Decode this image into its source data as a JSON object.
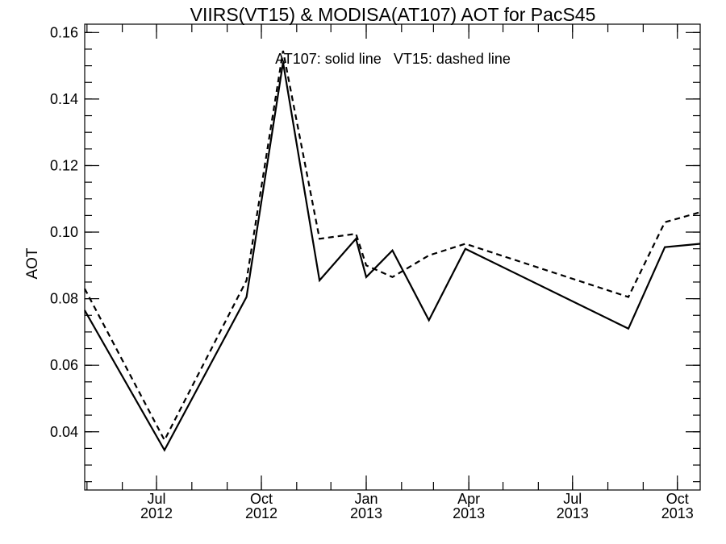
{
  "chart_data": {
    "type": "line",
    "title": "VIIRS(VT15) & MODISA(AT107)  AOT for PacS45",
    "ylabel": "AOT",
    "xlabel": "",
    "annotation": "AT107: solid line   VT15: dashed line",
    "xlim": [
      "2012-04-29",
      "2013-10-21"
    ],
    "ylim": [
      0.0225,
      0.1625
    ],
    "grid": false,
    "legend": "none",
    "y_ticks": [
      {
        "value": 0.04,
        "label": "0.04"
      },
      {
        "value": 0.06,
        "label": "0.06"
      },
      {
        "value": 0.08,
        "label": "0.08"
      },
      {
        "value": 0.1,
        "label": "0.10"
      },
      {
        "value": 0.12,
        "label": "0.12"
      },
      {
        "value": 0.14,
        "label": "0.14"
      },
      {
        "value": 0.16,
        "label": "0.16"
      }
    ],
    "x_ticks": [
      {
        "date": "2012-07-01",
        "month": "Jul",
        "year": "2012"
      },
      {
        "date": "2012-10-01",
        "month": "Oct",
        "year": "2012"
      },
      {
        "date": "2013-01-01",
        "month": "Jan",
        "year": "2013"
      },
      {
        "date": "2013-04-01",
        "month": "Apr",
        "year": "2013"
      },
      {
        "date": "2013-07-01",
        "month": "Jul",
        "year": "2013"
      },
      {
        "date": "2013-10-01",
        "month": "Oct",
        "year": "2013"
      }
    ],
    "series": [
      {
        "label": "AT107",
        "style": "solid",
        "color": "#000000",
        "points": [
          {
            "x": "2012-04-29",
            "y": 0.0765
          },
          {
            "x": "2012-07-08",
            "y": 0.0345
          },
          {
            "x": "2012-09-18",
            "y": 0.0805
          },
          {
            "x": "2012-10-20",
            "y": 0.151
          },
          {
            "x": "2012-11-21",
            "y": 0.0855
          },
          {
            "x": "2012-12-23",
            "y": 0.098
          },
          {
            "x": "2013-01-01",
            "y": 0.0865
          },
          {
            "x": "2013-01-24",
            "y": 0.0945
          },
          {
            "x": "2013-02-25",
            "y": 0.0735
          },
          {
            "x": "2013-03-29",
            "y": 0.095
          },
          {
            "x": "2013-08-19",
            "y": 0.071
          },
          {
            "x": "2013-09-20",
            "y": 0.0955
          },
          {
            "x": "2013-10-21",
            "y": 0.0965
          }
        ]
      },
      {
        "label": "VT15",
        "style": "dashed",
        "color": "#000000",
        "points": [
          {
            "x": "2012-04-29",
            "y": 0.083
          },
          {
            "x": "2012-07-08",
            "y": 0.0375
          },
          {
            "x": "2012-09-18",
            "y": 0.0855
          },
          {
            "x": "2012-10-20",
            "y": 0.1545
          },
          {
            "x": "2012-11-21",
            "y": 0.098
          },
          {
            "x": "2012-12-23",
            "y": 0.0995
          },
          {
            "x": "2013-01-01",
            "y": 0.09
          },
          {
            "x": "2013-01-24",
            "y": 0.0865
          },
          {
            "x": "2013-02-25",
            "y": 0.093
          },
          {
            "x": "2013-03-29",
            "y": 0.0965
          },
          {
            "x": "2013-08-19",
            "y": 0.0805
          },
          {
            "x": "2013-09-20",
            "y": 0.103
          },
          {
            "x": "2013-10-21",
            "y": 0.106
          }
        ]
      }
    ]
  }
}
